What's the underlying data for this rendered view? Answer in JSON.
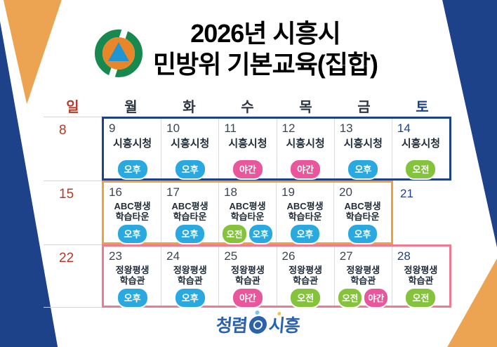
{
  "header": {
    "logo": "civil-defense-emblem",
    "title_line1": "2026년 시흥시",
    "title_line2": "민방위 기본교육(집합)"
  },
  "weekday_header": [
    {
      "label": "일",
      "color": "#b23a28"
    },
    {
      "label": "월",
      "color": "#2e3744"
    },
    {
      "label": "화",
      "color": "#2e3744"
    },
    {
      "label": "수",
      "color": "#2e3744"
    },
    {
      "label": "목",
      "color": "#2e3744"
    },
    {
      "label": "금",
      "color": "#2e3744"
    },
    {
      "label": "토",
      "color": "#1e4289"
    }
  ],
  "badge_styles": {
    "오전": "#85c33d",
    "오후": "#29a9e0",
    "야간": "#e9569b"
  },
  "weeks": [
    {
      "sunday_date": "8",
      "box": {
        "border_color": "#1e4289",
        "span": 6
      },
      "days": [
        {
          "date": "9",
          "saturday": false,
          "location": [
            "시흥시청"
          ],
          "badges": [
            "오후"
          ]
        },
        {
          "date": "10",
          "saturday": false,
          "location": [
            "시흥시청"
          ],
          "badges": [
            "오후"
          ]
        },
        {
          "date": "11",
          "saturday": false,
          "location": [
            "시흥시청"
          ],
          "badges": [
            "야간"
          ]
        },
        {
          "date": "12",
          "saturday": false,
          "location": [
            "시흥시청"
          ],
          "badges": [
            "야간"
          ]
        },
        {
          "date": "13",
          "saturday": false,
          "location": [
            "시흥시청"
          ],
          "badges": [
            "오후"
          ]
        },
        {
          "date": "14",
          "saturday": true,
          "location": [
            "시흥시청"
          ],
          "badges": [
            "오전"
          ]
        }
      ],
      "outside_days": []
    },
    {
      "sunday_date": "15",
      "box": {
        "border_color": "#efa03c",
        "span": 5
      },
      "days": [
        {
          "date": "16",
          "saturday": false,
          "location": [
            "ABC평생",
            "학습타운"
          ],
          "badges": [
            "오후"
          ]
        },
        {
          "date": "17",
          "saturday": false,
          "location": [
            "ABC평생",
            "학습타운"
          ],
          "badges": [
            "오후"
          ]
        },
        {
          "date": "18",
          "saturday": false,
          "location": [
            "ABC평생",
            "학습타운"
          ],
          "badges": [
            "오전",
            "오후"
          ]
        },
        {
          "date": "19",
          "saturday": false,
          "location": [
            "ABC평생",
            "학습타운"
          ],
          "badges": [
            "오후"
          ]
        },
        {
          "date": "20",
          "saturday": false,
          "location": [
            "ABC평생",
            "학습타운"
          ],
          "badges": [
            "오후"
          ]
        }
      ],
      "outside_days": [
        {
          "date": "21",
          "saturday": true
        }
      ]
    },
    {
      "sunday_date": "22",
      "box": {
        "border_color": "#ef7b92",
        "span": 6
      },
      "days": [
        {
          "date": "23",
          "saturday": false,
          "location": [
            "정왕평생",
            "학습관"
          ],
          "badges": [
            "오후"
          ]
        },
        {
          "date": "24",
          "saturday": false,
          "location": [
            "정왕평생",
            "학습관"
          ],
          "badges": [
            "오후"
          ]
        },
        {
          "date": "25",
          "saturday": false,
          "location": [
            "정왕평생",
            "학습관"
          ],
          "badges": [
            "야간"
          ]
        },
        {
          "date": "26",
          "saturday": false,
          "location": [
            "정왕평생",
            "학습관"
          ],
          "badges": [
            "오전"
          ]
        },
        {
          "date": "27",
          "saturday": false,
          "location": [
            "정왕평생",
            "학습관"
          ],
          "badges": [
            "오전",
            "야간"
          ]
        },
        {
          "date": "28",
          "saturday": true,
          "location": [
            "정왕평생",
            "학습관"
          ],
          "badges": [
            "오전"
          ]
        }
      ],
      "outside_days": []
    }
  ],
  "footer": {
    "logo_left": "청렴",
    "logo_right": "시흥"
  },
  "colors": {
    "decor_navy": "#1e4289",
    "decor_orange": "#eda452",
    "sunday_red": "#b23a28",
    "saturday_blue": "#1e4289",
    "weekday_date": "#3c4652",
    "location_text": "#222d3a",
    "emblem_ring_green": "#17894f",
    "emblem_core_orange": "#e8872a",
    "emblem_triangle_blue": "#2095d2",
    "footer_logo_blue": "#2a62ae"
  }
}
